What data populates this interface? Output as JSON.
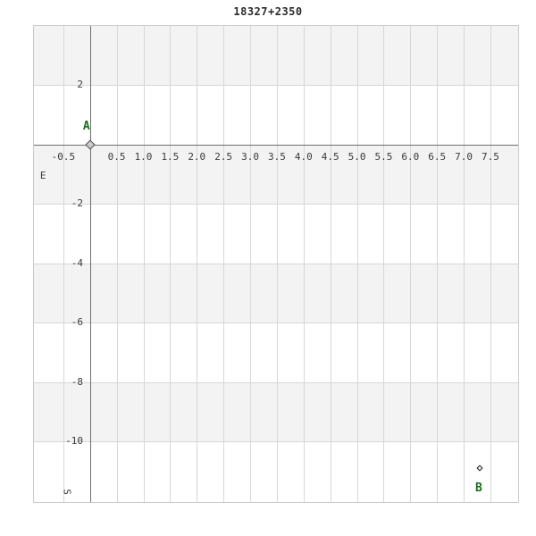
{
  "chart_data": {
    "type": "scatter",
    "title": "18327+2350",
    "xlabel": "E",
    "ylabel": "S",
    "xlim": [
      -1.05,
      8.02
    ],
    "ylim": [
      -12.05,
      4.0
    ],
    "xticks": [
      -0.5,
      0.5,
      1.0,
      1.5,
      2.0,
      2.5,
      3.0,
      3.5,
      4.0,
      4.5,
      5.0,
      5.5,
      6.0,
      6.5,
      7.0,
      7.5
    ],
    "xtick_labels": [
      "-0.5",
      "0.5",
      "1.0",
      "1.5",
      "2.0",
      "2.5",
      "3.0",
      "3.5",
      "4.0",
      "4.5",
      "5.0",
      "5.5",
      "6.0",
      "6.5",
      "7.0",
      "7.5"
    ],
    "yticks": [
      2,
      -2,
      -4,
      -6,
      -8,
      -10
    ],
    "ytick_labels": [
      "2",
      "-2",
      "-4",
      "-6",
      "-8",
      "-10"
    ],
    "grid": true,
    "legend": "none",
    "shade_bands": [
      [
        4,
        2
      ],
      [
        0,
        -2
      ],
      [
        -4,
        -6
      ],
      [
        -8,
        -10
      ]
    ],
    "points": [
      {
        "label": "A",
        "x": 0,
        "y": 0,
        "label_position": "above",
        "marker": {
          "shape": "diamond",
          "size": 6,
          "fill": "#cbcbcb",
          "stroke": "#4f4f4f"
        }
      },
      {
        "label": "B",
        "x": 7.3,
        "y": -10.9,
        "label_position": "below",
        "marker": {
          "shape": "diamond",
          "size": 3,
          "fill": "#ffffff",
          "stroke": "#151515"
        }
      }
    ],
    "annotations": [
      {
        "text": "E",
        "x": -0.88,
        "y": -1.05,
        "rotate": 0
      },
      {
        "text": "S",
        "x": -0.43,
        "y": -11.72,
        "rotate": 90
      }
    ],
    "colors": {
      "background": "#ffffff",
      "band": "#f3f3f3",
      "grid": "#d7d7d7",
      "axis": "#6e6e6e",
      "border": "#cbcbcb",
      "tick_text": "#3a3a3a",
      "title_text": "#2b2b2b",
      "point_label": "#166d16"
    }
  }
}
